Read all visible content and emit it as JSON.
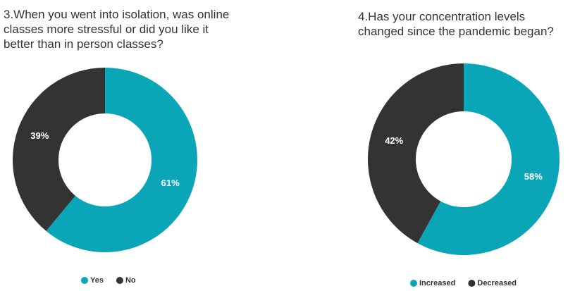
{
  "chart_data": [
    {
      "type": "pie",
      "title": "3.When you went into isolation, was online classes more stressful or did you like it better than in person classes?",
      "categories": [
        "Yes",
        "No"
      ],
      "values": [
        61,
        39
      ],
      "value_labels": [
        "61%",
        "39%"
      ],
      "colors": [
        "#0aa6b8",
        "#333333"
      ]
    },
    {
      "type": "pie",
      "title": "4.Has your concentration levels changed since the pandemic began?",
      "categories": [
        "Increased",
        "Decreased"
      ],
      "values": [
        58,
        42
      ],
      "value_labels": [
        "58%",
        "42%"
      ],
      "colors": [
        "#0aa6b8",
        "#333333"
      ]
    }
  ]
}
